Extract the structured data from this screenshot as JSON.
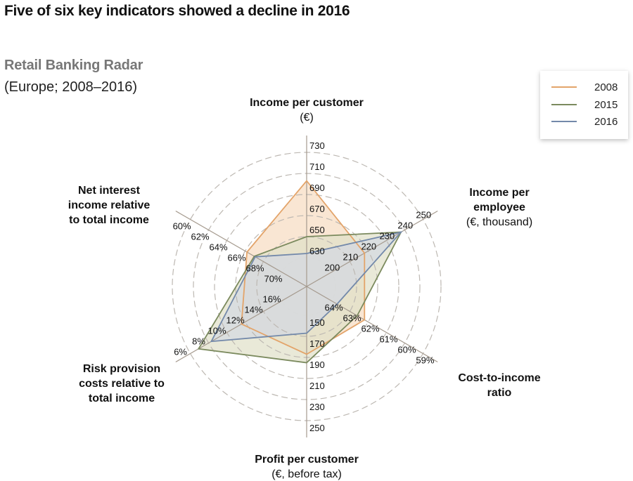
{
  "headline": "Five of six key indicators showed a decline in 2016",
  "subtitle": "Retail Banking Radar",
  "subtitle2": "(Europe; 2008–2016)",
  "legend": [
    {
      "label": "2008",
      "color": "#e3a46a"
    },
    {
      "label": "2015",
      "color": "#7b8a5e"
    },
    {
      "label": "2016",
      "color": "#7389aa"
    }
  ],
  "chart_data": {
    "type": "radar",
    "title": "Retail Banking Radar",
    "subtitle": "(Europe; 2008–2016)",
    "legend_position": "top-right",
    "grid": true,
    "axes": [
      {
        "name": "Income per customer",
        "unit": "(€)",
        "title_lines": [
          "Income per customer",
          "(€)"
        ],
        "ticks": [
          "630",
          "650",
          "670",
          "690",
          "710",
          "730"
        ],
        "range": [
          630,
          730
        ]
      },
      {
        "name": "Income per employee",
        "unit": "(€, thousand)",
        "title_lines": [
          "Income per",
          "employee",
          "(€, thousand)"
        ],
        "ticks": [
          "200",
          "210",
          "220",
          "230",
          "240",
          "250"
        ],
        "range": [
          200,
          250
        ]
      },
      {
        "name": "Cost-to-income ratio",
        "unit": "%",
        "title_lines": [
          "Cost-to-income",
          "ratio"
        ],
        "ticks": [
          "64%",
          "63%",
          "62%",
          "61%",
          "60%",
          "59%"
        ],
        "range": [
          64,
          59
        ]
      },
      {
        "name": "Profit per customer",
        "unit": "(€, before tax)",
        "title_lines": [
          "Profit per customer",
          "(€, before tax)"
        ],
        "ticks": [
          "150",
          "170",
          "190",
          "210",
          "230",
          "250"
        ],
        "range": [
          150,
          250
        ]
      },
      {
        "name": "Risk provision costs relative to total income",
        "unit": "%",
        "title_lines": [
          "Risk provision",
          "costs relative to",
          "total income"
        ],
        "ticks": [
          "16%",
          "14%",
          "12%",
          "10%",
          "8%",
          "6%"
        ],
        "range": [
          16,
          6
        ]
      },
      {
        "name": "Net interest income relative to total income",
        "unit": "%",
        "title_lines": [
          "Net interest",
          "income relative",
          "to total income"
        ],
        "ticks": [
          "70%",
          "68%",
          "66%",
          "64%",
          "62%",
          "60%"
        ],
        "range": [
          70,
          60
        ]
      }
    ],
    "series": [
      {
        "name": "2008",
        "color": "#e3a46a",
        "fill": "#f6dcc0",
        "values": [
          703,
          218,
          62.2,
          187,
          11.6,
          66.2
        ]
      },
      {
        "name": "2015",
        "color": "#7b8a5e",
        "fill": "#dfe0c8",
        "values": [
          650,
          238,
          62.6,
          195,
          6.9,
          67.0
        ]
      },
      {
        "name": "2016",
        "color": "#7389aa",
        "fill": "#d3d9e3",
        "values": [
          634,
          238,
          63.7,
          167,
          8.3,
          67.1
        ]
      }
    ]
  }
}
